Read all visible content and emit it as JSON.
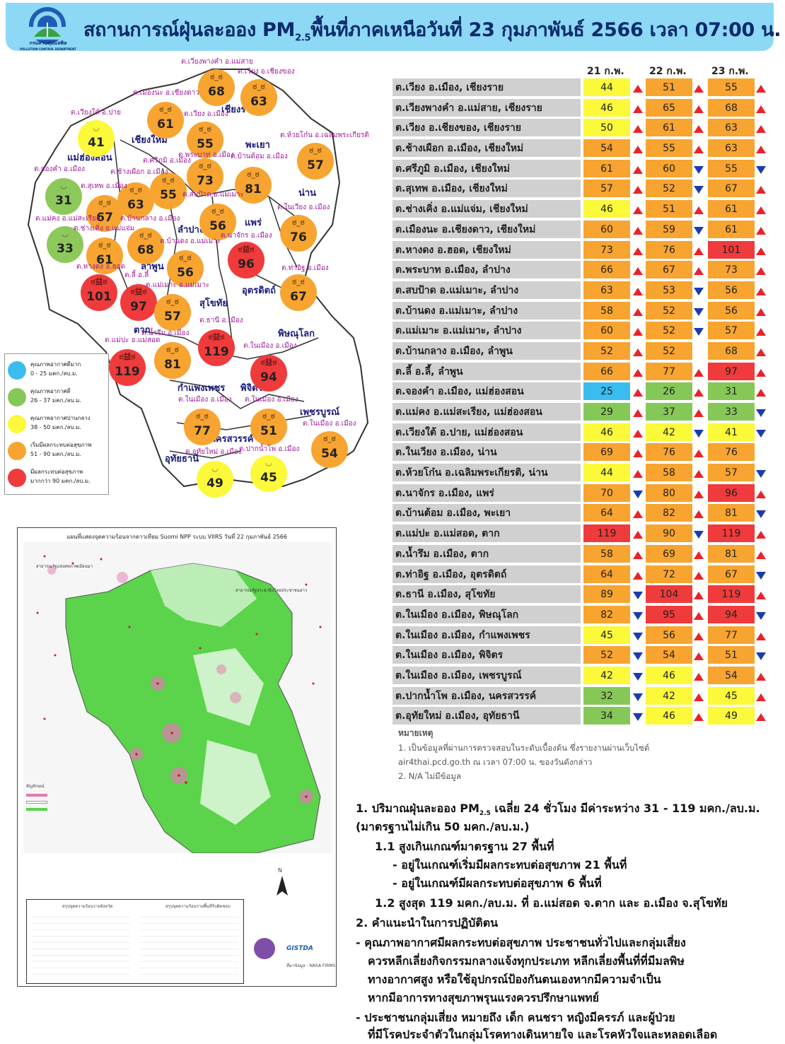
{
  "header": {
    "logo_caption": "กรมควบคุมมลพิษ",
    "logo_caption_en": "POLLUTION CONTROL DEPARTMENT",
    "title_prefix": "สถานการณ์ฝุ่นละออง PM",
    "title_sub": "2.5",
    "title_suffix": "พื้นที่ภาคเหนือวันที่ 23 กุมภาพันธ์ 2566 เวลา 07:00 น."
  },
  "map": {
    "bubbles": [
      {
        "label": "ต.เวียงพางคำ อ.แม่สาย",
        "value": 68,
        "level": "orange"
      },
      {
        "label": "ต.เวียง อ.เชียงของ",
        "value": 63,
        "level": "orange"
      },
      {
        "label": "ต.เมืองนะ อ.เชียงดาว",
        "value": 61,
        "level": "orange"
      },
      {
        "label": "ต.เวียงใต้ อ.ปาย",
        "value": 41,
        "level": "yellow"
      },
      {
        "label": "ต.เวียง อ.เมือง",
        "value": 55,
        "level": "orange"
      },
      {
        "label": "ต.ห้วยโก๋น อ.เฉลิมพระเกียรติ",
        "value": 57,
        "level": "orange"
      },
      {
        "label": "ต.จองคำ อ.เมือง",
        "value": 31,
        "level": "green"
      },
      {
        "label": "ต.ศรีภูมิ อ.เมือง",
        "value": 55,
        "level": "orange"
      },
      {
        "label": "ต.พระบาท อ.เมือง",
        "value": 73,
        "level": "orange"
      },
      {
        "label": "ต.บ้านต้อม อ.เมือง",
        "value": 81,
        "level": "orange"
      },
      {
        "label": "ต.ช้างเผือก อ.เมือง",
        "value": 63,
        "level": "orange"
      },
      {
        "label": "ต.สุเทพ อ.เมือง",
        "value": 67,
        "level": "orange"
      },
      {
        "label": "ต.สบป้าด อ.แม่เมาะ",
        "value": 56,
        "level": "orange"
      },
      {
        "label": "ต.ในเวียง อ.เมือง",
        "value": 76,
        "level": "orange"
      },
      {
        "label": "ต.แม่คง อ.แม่สะเรียง",
        "value": 33,
        "level": "green"
      },
      {
        "label": "ต.บ้านกลาง อ.เมือง",
        "value": 68,
        "level": "orange"
      },
      {
        "label": "ต.ช่างเคิ่ง อ.แม่แจ่ม",
        "value": 61,
        "level": "orange"
      },
      {
        "label": "ต.นาจักร อ.เมือง",
        "value": 96,
        "level": "red"
      },
      {
        "label": "ต.บ้านดง อ.แม่เมาะ",
        "value": 56,
        "level": "orange"
      },
      {
        "label": "ต.หางดง อ.ฮอด",
        "value": 101,
        "level": "red"
      },
      {
        "label": "ต.ลี้ อ.ลี้",
        "value": 97,
        "level": "red"
      },
      {
        "label": "ต.แม่เมาะ อ.แม่เมาะ",
        "value": 57,
        "level": "orange"
      },
      {
        "label": "ต.ท่าอิฐ อ.เมือง",
        "value": 67,
        "level": "orange"
      },
      {
        "label": "ต.ธานี อ.เมือง",
        "value": 119,
        "level": "red"
      },
      {
        "label": "ต.น้ำรึม อ.เมือง",
        "value": 81,
        "level": "orange"
      },
      {
        "label": "ต.แม่ปะ อ.แม่สอด",
        "value": 119,
        "level": "red"
      },
      {
        "label": "ต.ในเมือง อ.เมือง",
        "value": 94,
        "level": "red"
      },
      {
        "label": "ต.ในเมือง อ.เมือง",
        "value": 77,
        "level": "orange"
      },
      {
        "label": "ต.ในเมือง อ.เมือง",
        "value": 51,
        "level": "orange"
      },
      {
        "label": "ต.ในเมือง อ.เมือง",
        "value": 54,
        "level": "orange"
      },
      {
        "label": "ต.อุทัยใหม่ อ.เมือง",
        "value": 49,
        "level": "yellow"
      },
      {
        "label": "ต.ปากน้ำโพ อ.เมือง",
        "value": 45,
        "level": "yellow"
      }
    ],
    "provinces": [
      "เชียงราย",
      "แม่ฮ่องสอน",
      "เชียงใหม่",
      "พะเยา",
      "น่าน",
      "ลำปาง",
      "แพร่",
      "ลำพูน",
      "อุตรดิตถ์",
      "สุโขทัย",
      "ตาก",
      "พิษณุโลก",
      "กำแพงเพชร",
      "พิจิตร",
      "เพชรบูรณ์",
      "นครสวรรค์",
      "อุทัยธานี"
    ]
  },
  "legend": [
    {
      "title": "คุณภาพอากาศดีมาก",
      "range": "0 - 25 มคก./ลบ.ม.",
      "color": "#3bbcef"
    },
    {
      "title": "คุณภาพอากาศดี",
      "range": "26 - 37 มคก./ลบ.ม.",
      "color": "#86c858"
    },
    {
      "title": "คุณภาพอากาศปานกลาง",
      "range": "38 - 50 มคก./ลบ.ม.",
      "color": "#fbf93a"
    },
    {
      "title": "เริ่มมีผลกระทบต่อสุขภาพ",
      "range": "51 - 90 มคก./ลบ.ม.",
      "color": "#f7a430"
    },
    {
      "title": "มีผลกระทบต่อสุขภาพ",
      "range": "มากกว่า 90 มคก./ลบ.ม.",
      "color": "#ef3b3b"
    }
  ],
  "satellite_map": {
    "title": "แผนที่แสดงจุดความร้อนจากดาวเทียม Suomi NPP ระบบ VIIRS วันที่ 22 กุมภาพันธ์ 2566",
    "label_west": "สาธารณรัฐแห่งสหภาพเมียนมา",
    "label_north": "สาธารณรัฐประชาธิปไตยประชาชนลาว",
    "legend_title": "สัญลักษณ์",
    "summary_title_1": "สรุปจุดความร้อนรายจังหวัด",
    "summary_title_2": "สรุปจุดความร้อนรายพื้นที่รับผิดชอบ",
    "credit": "ที่มาข้อมูล : NASA FIRMS",
    "agency": "GISTDA",
    "north_label": "N"
  },
  "table": {
    "date_headers": [
      "21 ก.พ.",
      "22 ก.พ.",
      "23 ก.พ."
    ],
    "rows": [
      {
        "loc": "ต.เวียง อ.เมือง, เชียงราย",
        "v": [
          44,
          51,
          55
        ],
        "t": [
          "up",
          "up",
          "up"
        ]
      },
      {
        "loc": "ต.เวียงพางคำ อ.แม่สาย, เชียงราย",
        "v": [
          46,
          65,
          68
        ],
        "t": [
          "up",
          "up",
          "up"
        ]
      },
      {
        "loc": "ต.เวียง อ.เชียงของ, เชียงราย",
        "v": [
          50,
          61,
          63
        ],
        "t": [
          "up",
          "up",
          "up"
        ]
      },
      {
        "loc": "ต.ช้างเผือก อ.เมือง, เชียงใหม่",
        "v": [
          54,
          55,
          63
        ],
        "t": [
          "up",
          "up",
          "up"
        ]
      },
      {
        "loc": "ต.ศรีภูมิ อ.เมือง, เชียงใหม่",
        "v": [
          61,
          60,
          55
        ],
        "t": [
          "up",
          "down",
          "down"
        ]
      },
      {
        "loc": "ต.สุเทพ อ.เมือง, เชียงใหม่",
        "v": [
          57,
          52,
          67
        ],
        "t": [
          "up",
          "down",
          "up"
        ]
      },
      {
        "loc": "ต.ช่างเคิ่ง อ.แม่แจ่ม, เชียงใหม่",
        "v": [
          46,
          51,
          61
        ],
        "t": [
          "up",
          "up",
          "up"
        ]
      },
      {
        "loc": "ต.เมืองนะ อ.เชียงดาว, เชียงใหม่",
        "v": [
          60,
          59,
          61
        ],
        "t": [
          "up",
          "down",
          "up"
        ]
      },
      {
        "loc": "ต.หางดง อ.ฮอด, เชียงใหม่",
        "v": [
          73,
          76,
          101
        ],
        "t": [
          "up",
          "up",
          "up"
        ]
      },
      {
        "loc": "ต.พระบาท อ.เมือง, ลำปาง",
        "v": [
          66,
          67,
          73
        ],
        "t": [
          "up",
          "up",
          "up"
        ]
      },
      {
        "loc": "ต.สบป้าด อ.แม่เมาะ, ลำปาง",
        "v": [
          63,
          53,
          56
        ],
        "t": [
          "up",
          "down",
          "up"
        ]
      },
      {
        "loc": "ต.บ้านดง อ.แม่เมาะ, ลำปาง",
        "v": [
          58,
          52,
          56
        ],
        "t": [
          "up",
          "down",
          "up"
        ]
      },
      {
        "loc": "ต.แม่เมาะ อ.แม่เมาะ, ลำปาง",
        "v": [
          60,
          52,
          57
        ],
        "t": [
          "up",
          "down",
          "up"
        ]
      },
      {
        "loc": "ต.บ้านกลาง อ.เมือง, ลำพูน",
        "v": [
          52,
          52,
          68
        ],
        "t": [
          "up",
          "",
          "up"
        ]
      },
      {
        "loc": "ต.ลี้ อ.ลี้, ลำพูน",
        "v": [
          66,
          77,
          97
        ],
        "t": [
          "up",
          "up",
          "up"
        ]
      },
      {
        "loc": "ต.จองคำ อ.เมือง, แม่ฮ่องสอน",
        "v": [
          25,
          26,
          31
        ],
        "t": [
          "up",
          "up",
          "up"
        ]
      },
      {
        "loc": "ต.แม่คง อ.แม่สะเรียง, แม่ฮ่องสอน",
        "v": [
          29,
          37,
          33
        ],
        "t": [
          "up",
          "up",
          "down"
        ]
      },
      {
        "loc": "ต.เวียงใต้ อ.ปาย, แม่ฮ่องสอน",
        "v": [
          46,
          42,
          41
        ],
        "t": [
          "up",
          "down",
          "down"
        ]
      },
      {
        "loc": "ต.ในเวียง อ.เมือง, น่าน",
        "v": [
          69,
          76,
          76
        ],
        "t": [
          "up",
          "up",
          ""
        ]
      },
      {
        "loc": "ต.ห้วยโก๋น อ.เฉลิมพระเกียรติ, น่าน",
        "v": [
          44,
          58,
          57
        ],
        "t": [
          "up",
          "up",
          "down"
        ]
      },
      {
        "loc": "ต.นาจักร อ.เมือง, แพร่",
        "v": [
          70,
          80,
          96
        ],
        "t": [
          "down",
          "up",
          "up"
        ]
      },
      {
        "loc": "ต.บ้านต้อม อ.เมือง, พะเยา",
        "v": [
          64,
          82,
          81
        ],
        "t": [
          "up",
          "up",
          "down"
        ]
      },
      {
        "loc": "ต.แม่ปะ อ.แม่สอด, ตาก",
        "v": [
          119,
          90,
          119
        ],
        "t": [
          "up",
          "down",
          "up"
        ]
      },
      {
        "loc": "ต.น้ำรึม อ.เมือง, ตาก",
        "v": [
          58,
          69,
          81
        ],
        "t": [
          "up",
          "up",
          "up"
        ]
      },
      {
        "loc": "ต.ท่าอิฐ อ.เมือง, อุตรดิตถ์",
        "v": [
          64,
          72,
          67
        ],
        "t": [
          "up",
          "up",
          "down"
        ]
      },
      {
        "loc": "ต.ธานี อ.เมือง, สุโขทัย",
        "v": [
          89,
          104,
          119
        ],
        "t": [
          "down",
          "up",
          "up"
        ]
      },
      {
        "loc": "ต.ในเมือง อ.เมือง, พิษณุโลก",
        "v": [
          82,
          95,
          94
        ],
        "t": [
          "down",
          "up",
          "down"
        ]
      },
      {
        "loc": "ต.ในเมือง อ.เมือง, กำแพงเพชร",
        "v": [
          45,
          56,
          77
        ],
        "t": [
          "down",
          "up",
          "up"
        ]
      },
      {
        "loc": "ต.ในเมือง อ.เมือง, พิจิตร",
        "v": [
          52,
          54,
          51
        ],
        "t": [
          "down",
          "up",
          "down"
        ]
      },
      {
        "loc": "ต.ในเมือง อ.เมือง, เพชรบูรณ์",
        "v": [
          42,
          46,
          54
        ],
        "t": [
          "down",
          "up",
          "up"
        ]
      },
      {
        "loc": "ต.ปากน้ำโพ อ.เมือง, นครสวรรค์",
        "v": [
          32,
          42,
          45
        ],
        "t": [
          "down",
          "up",
          "up"
        ]
      },
      {
        "loc": "ต.อุทัยใหม่ อ.เมือง, อุทัยธานี",
        "v": [
          34,
          46,
          49
        ],
        "t": [
          "down",
          "up",
          "up"
        ]
      }
    ]
  },
  "notes": {
    "title": "หมายเหตุ",
    "line1": "1.  เป็นข้อมูลที่ผ่านการตรวจสอบในระดับเบื้องต้น  ซึ่งรายงานผ่านเว็บไซต์",
    "line2": "air4thai.pcd.go.th  ณ  เวลา 07:00  น.  ของวันดังกล่าว",
    "line3": "2.  N/A  ไม่มีข้อมูล"
  },
  "summary": {
    "p1_prefix": "1. ปริมาณฝุ่นละออง PM",
    "p1_sub": "2.5",
    "p1_suffix": " เฉลี่ย 24 ชั่วโมง มีค่าระหว่าง 31 - 119 มคก./ลบ.ม.",
    "p1_line2": "(มาตรฐานไม่เกิน 50 มคก./ลบ.ม.)",
    "p1_1": "1.1 สูงเกินเกณฑ์มาตรฐาน 27 พื้นที่",
    "p1_1a": "- อยู่ในเกณฑ์เริ่มมีผลกระทบต่อสุขภาพ 21 พื้นที่",
    "p1_1b": "- อยู่ในเกณฑ์มีผลกระทบต่อสุขภาพ 6 พื้นที่",
    "p1_2": "1.2 สูงสุด 119 มคก./ลบ.ม. ที่ อ.แม่สอด จ.ตาก และ อ.เมือง จ.สุโขทัย",
    "p2": "2. คำแนะนำในการปฏิบัติตน",
    "p2_a1": "- คุณภาพอากาศมีผลกระทบต่อสุขภาพ ประชาชนทั่วไปและกลุ่มเสี่ยง",
    "p2_a2": "ควรหลีกเลี่ยงกิจกรรมกลางแจ้งทุกประเภท หลีกเลี่ยงพื้นที่ที่มีมลพิษ",
    "p2_a3": "ทางอากาศสูง หรือใช้อุปกรณ์ป้องกันตนเองหากมีความจำเป็น",
    "p2_a4": "หากมีอาการทางสุขภาพรุนแรงควรปรึกษาแพทย์",
    "p2_b1": "- ประชาชนกลุ่มเสี่ยง หมายถึง เด็ก คนชรา หญิงมีครรภ์ และผู้ป่วย",
    "p2_b2": "ที่มีโรคประจำตัวในกลุ่มโรคทางเดินหายใจ และโรคหัวใจและหลอดเลือด"
  }
}
